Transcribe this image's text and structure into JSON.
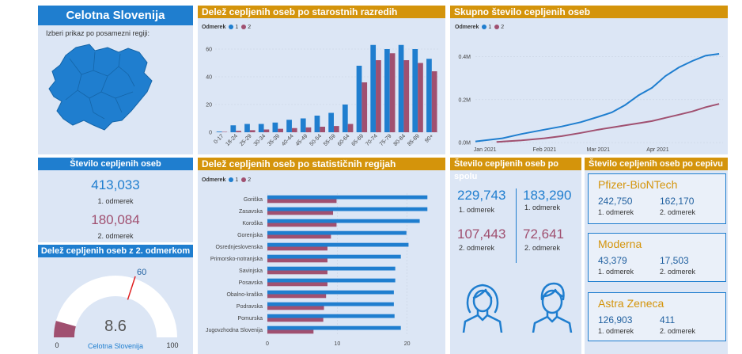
{
  "left": {
    "title": "Celotna Slovenija",
    "subtitle": "Izberi prikaz po posamezni regiji:",
    "count_title": "Število cepljenih oseb",
    "dose1_value": "413,033",
    "dose1_label": "1. odmerek",
    "dose2_value": "180,084",
    "dose2_label": "2. odmerek",
    "gauge_title": "Delež cepljenih oseb z 2. odmerkom",
    "gauge_value": 8.6,
    "gauge_value_text": "8.6",
    "gauge_target_text": "60",
    "gauge_min_text": "0",
    "gauge_max_text": "100",
    "gauge_region": "Celotna Slovenija"
  },
  "legend": {
    "title": "Odmerek",
    "s1": "1",
    "s2": "2"
  },
  "colors": {
    "blue": "#1f7ecf",
    "red": "#a05070",
    "gold": "#d4940b"
  },
  "chart_data": [
    {
      "type": "bar",
      "title": "Delež cepljenih oseb po starostnih razredih",
      "categories": [
        "0-17",
        "18-24",
        "25-29",
        "30-34",
        "35-39",
        "40-44",
        "45-49",
        "50-54",
        "55-59",
        "60-64",
        "65-69",
        "70-74",
        "75-79",
        "80-84",
        "85-89",
        "90+"
      ],
      "series": [
        {
          "name": "1",
          "values": [
            0.5,
            5,
            6,
            6,
            7,
            9,
            10,
            12,
            14,
            20,
            48,
            63,
            60,
            63,
            60,
            53
          ]
        },
        {
          "name": "2",
          "values": [
            0.3,
            1,
            1.5,
            2,
            2.5,
            3,
            3.5,
            4,
            4.5,
            6,
            36,
            52,
            57,
            52,
            50,
            44
          ]
        }
      ],
      "yticks": [
        0,
        20,
        40,
        60
      ],
      "ylim": [
        0,
        68
      ]
    },
    {
      "type": "line",
      "title": "Skupno število cepljenih oseb",
      "xticks": [
        "Jan 2021",
        "Feb 2021",
        "Mar 2021",
        "Apr 2021"
      ],
      "yticks": [
        "0.0M",
        "0.2M",
        "0.4M"
      ],
      "ylim": [
        0,
        0.45
      ],
      "xlim": [
        "2020-12-27",
        "2021-05-05"
      ],
      "series": [
        {
          "name": "1",
          "x": [
            "2020-12-27",
            "2021-01-10",
            "2021-01-20",
            "2021-02-01",
            "2021-02-10",
            "2021-02-20",
            "2021-03-01",
            "2021-03-08",
            "2021-03-15",
            "2021-03-22",
            "2021-03-29",
            "2021-04-05",
            "2021-04-12",
            "2021-04-19",
            "2021-04-26",
            "2021-05-03"
          ],
          "values": [
            0.005,
            0.02,
            0.04,
            0.06,
            0.075,
            0.095,
            0.12,
            0.14,
            0.175,
            0.22,
            0.255,
            0.31,
            0.35,
            0.38,
            0.405,
            0.413
          ]
        },
        {
          "name": "2",
          "x": [
            "2021-01-07",
            "2021-01-20",
            "2021-02-01",
            "2021-02-10",
            "2021-02-20",
            "2021-03-01",
            "2021-03-08",
            "2021-03-15",
            "2021-03-22",
            "2021-03-29",
            "2021-04-05",
            "2021-04-12",
            "2021-04-19",
            "2021-04-26",
            "2021-05-03"
          ],
          "values": [
            0.003,
            0.01,
            0.02,
            0.03,
            0.045,
            0.06,
            0.07,
            0.08,
            0.09,
            0.1,
            0.115,
            0.13,
            0.145,
            0.165,
            0.18
          ]
        }
      ]
    },
    {
      "type": "bar",
      "orientation": "horizontal",
      "title": "Delež cepljenih oseb po statističnih regijah",
      "categories": [
        "Goriška",
        "Zasavska",
        "Koroška",
        "Gorenjska",
        "Osrednjeslovenska",
        "Primorsko-notranjska",
        "Savinjska",
        "Posavska",
        "Obalno-kraška",
        "Podravska",
        "Pomurska",
        "Jugovzhodna Slovenija"
      ],
      "series": [
        {
          "name": "1",
          "values": [
            22.9,
            22.9,
            21.8,
            19.9,
            20.2,
            19.1,
            18.3,
            18.3,
            18.1,
            18.1,
            18.2,
            19.1
          ]
        },
        {
          "name": "2",
          "values": [
            9.9,
            9.4,
            9.9,
            9.1,
            8.6,
            8.6,
            8.6,
            8.6,
            8.4,
            8.1,
            8.0,
            6.6
          ]
        }
      ],
      "xticks": [
        0,
        10,
        20
      ],
      "xlim": [
        0,
        24
      ]
    }
  ],
  "gender": {
    "title": "Število cepljenih oseb po spolu",
    "female_d1": "229,743",
    "female_d2": "107,443",
    "male_d1": "183,290",
    "male_d2": "72,641",
    "d1_label": "1. odmerek",
    "d2_label": "2. odmerek"
  },
  "vaccines": {
    "title": "Število cepljenih oseb po cepivu",
    "items": [
      {
        "name": "Pfizer-BioNTech",
        "d1": "242,750",
        "d2": "162,170"
      },
      {
        "name": "Moderna",
        "d1": "43,379",
        "d2": "17,503"
      },
      {
        "name": "Astra Zeneca",
        "d1": "126,903",
        "d2": "411"
      }
    ],
    "d1_label": "1. odmerek",
    "d2_label": "2. odmerek"
  }
}
